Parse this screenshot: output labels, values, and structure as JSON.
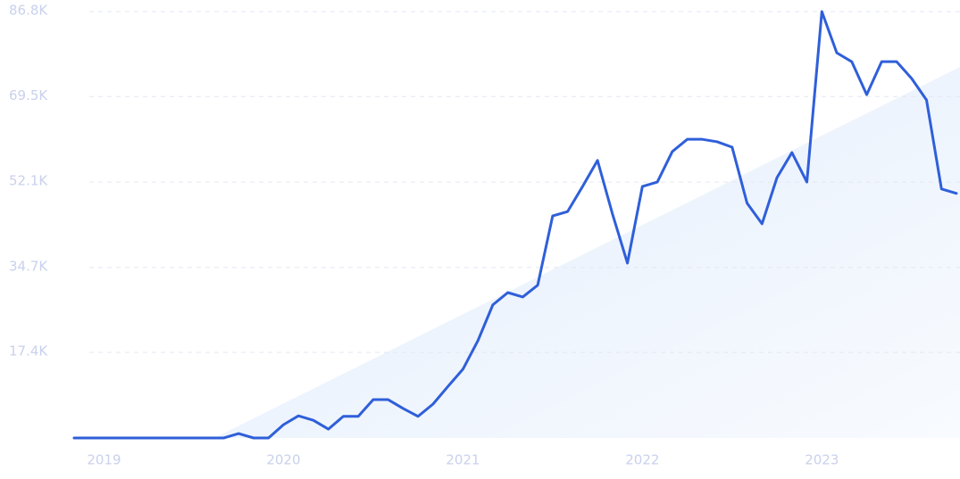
{
  "chart_data": {
    "type": "line",
    "categories": [
      null,
      null,
      "2019",
      null,
      null,
      null,
      null,
      null,
      null,
      null,
      null,
      null,
      null,
      null,
      "2020",
      null,
      null,
      null,
      null,
      null,
      null,
      null,
      null,
      null,
      null,
      null,
      "2021",
      null,
      null,
      null,
      null,
      null,
      null,
      null,
      null,
      null,
      null,
      null,
      "2022",
      null,
      null,
      null,
      null,
      null,
      null,
      null,
      null,
      null,
      null,
      null,
      "2023",
      null,
      null,
      null,
      null,
      null,
      null,
      null,
      null,
      null
    ],
    "series": [
      {
        "color": "#2f5fd9",
        "values": [
          0,
          0,
          0,
          0,
          0,
          0,
          0,
          0,
          0,
          0,
          0,
          900,
          0,
          0,
          2700,
          4500,
          3600,
          1800,
          4400,
          4400,
          7800,
          7800,
          6000,
          4400,
          6900,
          10500,
          14000,
          19800,
          27100,
          29600,
          28700,
          31100,
          45200,
          46100,
          51200,
          56500,
          45600,
          35600,
          51200,
          52100,
          58300,
          60800,
          60800,
          60300,
          59200,
          47800,
          43600,
          53000,
          58100,
          52100,
          86800,
          78400,
          76600,
          69900,
          76600,
          76600,
          73200,
          68800,
          50700,
          49800
        ]
      }
    ],
    "ylim": [
      0,
      86800
    ],
    "yticks": [
      {
        "value": 17400,
        "label": "17.4K"
      },
      {
        "value": 34700,
        "label": "34.7K"
      },
      {
        "value": 52100,
        "label": "52.1K"
      },
      {
        "value": 69500,
        "label": "69.5K"
      },
      {
        "value": 86800,
        "label": "86.8K"
      }
    ],
    "grid": true
  }
}
